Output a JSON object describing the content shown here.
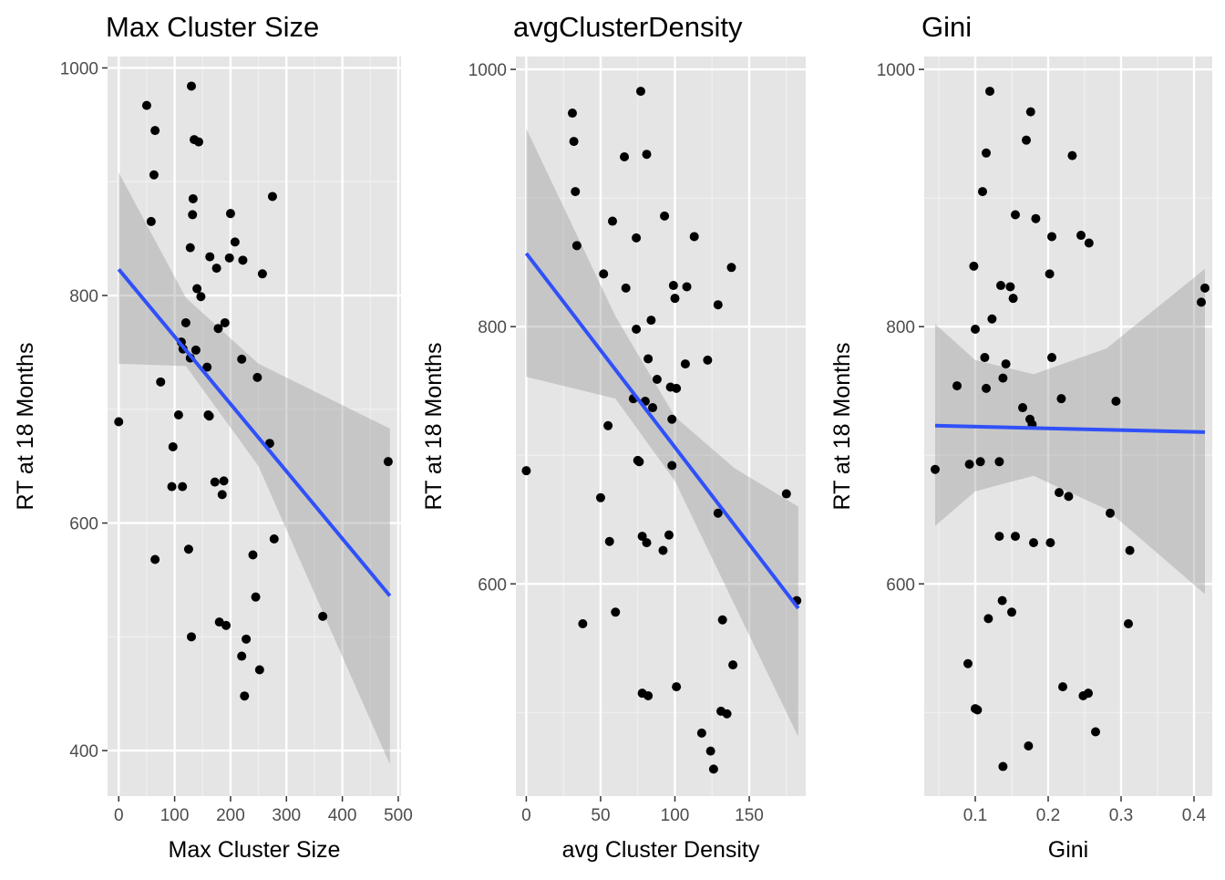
{
  "colors": {
    "panel_bg": "#e5e5e5",
    "grid_major": "#ffffff",
    "grid_minor": "#f0f0f0",
    "point": "#000000",
    "fit_line": "#3050f8",
    "ribbon": "#999999",
    "tick_text": "#4d4d4d",
    "title_text": "#000000"
  },
  "chart_data": [
    {
      "type": "scatter",
      "title": "Max Cluster Size",
      "xlabel": "Max Cluster Size",
      "ylabel": "RT at 18 Months",
      "xlim": [
        -20,
        505
      ],
      "ylim": [
        360,
        1010
      ],
      "xticks": [
        0,
        100,
        200,
        300,
        400,
        500
      ],
      "yticks": [
        400,
        600,
        800,
        1000
      ],
      "grid": true,
      "fit": {
        "x": [
          0,
          485
        ],
        "y": [
          823,
          536
        ]
      },
      "ribbon": {
        "x": [
          0,
          120,
          250,
          485
        ],
        "upper": [
          908,
          798,
          740,
          683
        ],
        "lower": [
          740,
          738,
          650,
          388
        ]
      },
      "points": [
        [
          0,
          689
        ],
        [
          50,
          967
        ],
        [
          58,
          865
        ],
        [
          63,
          906
        ],
        [
          65,
          945
        ],
        [
          65,
          568
        ],
        [
          75,
          724
        ],
        [
          95,
          632
        ],
        [
          97,
          667
        ],
        [
          107,
          695
        ],
        [
          112,
          759
        ],
        [
          114,
          632
        ],
        [
          115,
          753
        ],
        [
          120,
          776
        ],
        [
          125,
          577
        ],
        [
          128,
          745
        ],
        [
          128,
          842
        ],
        [
          130,
          500
        ],
        [
          130,
          984
        ],
        [
          132,
          871
        ],
        [
          133,
          885
        ],
        [
          135,
          937
        ],
        [
          138,
          752
        ],
        [
          140,
          806
        ],
        [
          143,
          935
        ],
        [
          147,
          799
        ],
        [
          158,
          737
        ],
        [
          160,
          695
        ],
        [
          162,
          694
        ],
        [
          163,
          834
        ],
        [
          172,
          636
        ],
        [
          175,
          824
        ],
        [
          178,
          771
        ],
        [
          180,
          513
        ],
        [
          185,
          625
        ],
        [
          188,
          637
        ],
        [
          190,
          776
        ],
        [
          192,
          510
        ],
        [
          198,
          833
        ],
        [
          200,
          872
        ],
        [
          208,
          847
        ],
        [
          220,
          744
        ],
        [
          220,
          483
        ],
        [
          222,
          831
        ],
        [
          225,
          448
        ],
        [
          228,
          498
        ],
        [
          240,
          572
        ],
        [
          245,
          535
        ],
        [
          248,
          728
        ],
        [
          252,
          471
        ],
        [
          257,
          819
        ],
        [
          270,
          670
        ],
        [
          275,
          887
        ],
        [
          278,
          586
        ],
        [
          365,
          518
        ],
        [
          482,
          654
        ]
      ]
    },
    {
      "type": "scatter",
      "title": "avgClusterDensity",
      "xlabel": "avg Cluster Density",
      "ylabel": "RT at 18 Months",
      "xlim": [
        -7,
        188
      ],
      "ylim": [
        435,
        1010
      ],
      "xticks": [
        0,
        50,
        100,
        150
      ],
      "yticks": [
        600,
        800,
        1000
      ],
      "grid": true,
      "fit": {
        "x": [
          0,
          183
        ],
        "y": [
          857,
          581
        ]
      },
      "ribbon": {
        "x": [
          0,
          60,
          100,
          140,
          183
        ],
        "upper": [
          954,
          808,
          730,
          690,
          660
        ],
        "lower": [
          761,
          744,
          680,
          584,
          481
        ]
      },
      "points": [
        [
          0,
          688
        ],
        [
          31,
          966
        ],
        [
          32,
          944
        ],
        [
          33,
          905
        ],
        [
          34,
          863
        ],
        [
          38,
          569
        ],
        [
          50,
          667
        ],
        [
          52,
          841
        ],
        [
          55,
          723
        ],
        [
          56,
          633
        ],
        [
          58,
          882
        ],
        [
          60,
          578
        ],
        [
          66,
          932
        ],
        [
          67,
          830
        ],
        [
          72,
          744
        ],
        [
          74,
          869
        ],
        [
          74,
          798
        ],
        [
          75,
          696
        ],
        [
          76,
          695
        ],
        [
          77,
          983
        ],
        [
          78,
          637
        ],
        [
          78,
          515
        ],
        [
          80,
          742
        ],
        [
          81,
          934
        ],
        [
          81,
          632
        ],
        [
          82,
          775
        ],
        [
          82,
          513
        ],
        [
          84,
          805
        ],
        [
          85,
          737
        ],
        [
          88,
          759
        ],
        [
          92,
          626
        ],
        [
          93,
          886
        ],
        [
          96,
          638
        ],
        [
          97,
          753
        ],
        [
          98,
          728
        ],
        [
          98,
          692
        ],
        [
          99,
          832
        ],
        [
          100,
          822
        ],
        [
          101,
          752
        ],
        [
          101,
          520
        ],
        [
          107,
          771
        ],
        [
          108,
          831
        ],
        [
          113,
          870
        ],
        [
          118,
          484
        ],
        [
          122,
          774
        ],
        [
          124,
          470
        ],
        [
          126,
          456
        ],
        [
          129,
          817
        ],
        [
          129,
          655
        ],
        [
          131,
          501
        ],
        [
          132,
          572
        ],
        [
          135,
          499
        ],
        [
          138,
          846
        ],
        [
          139,
          537
        ],
        [
          175,
          670
        ],
        [
          182,
          587
        ]
      ]
    },
    {
      "type": "scatter",
      "title": "Gini",
      "xlabel": "Gini",
      "ylabel": "RT at 18 Months",
      "xlim": [
        0.03,
        0.425
      ],
      "ylim": [
        435,
        1010
      ],
      "xticks": [
        0.1,
        0.2,
        0.3,
        0.4
      ],
      "yticks": [
        600,
        800,
        1000
      ],
      "grid": true,
      "fit": {
        "x": [
          0.045,
          0.415
        ],
        "y": [
          723,
          718
        ]
      },
      "ribbon": {
        "x": [
          0.045,
          0.1,
          0.18,
          0.28,
          0.415
        ],
        "upper": [
          802,
          774,
          763,
          783,
          845
        ],
        "lower": [
          645,
          672,
          684,
          658,
          592
        ]
      },
      "points": [
        [
          0.045,
          689
        ],
        [
          0.075,
          754
        ],
        [
          0.09,
          538
        ],
        [
          0.092,
          693
        ],
        [
          0.098,
          847
        ],
        [
          0.1,
          798
        ],
        [
          0.1,
          503
        ],
        [
          0.103,
          502
        ],
        [
          0.107,
          695
        ],
        [
          0.11,
          905
        ],
        [
          0.113,
          776
        ],
        [
          0.115,
          752
        ],
        [
          0.115,
          935
        ],
        [
          0.118,
          573
        ],
        [
          0.12,
          983
        ],
        [
          0.123,
          806
        ],
        [
          0.133,
          637
        ],
        [
          0.133,
          695
        ],
        [
          0.135,
          832
        ],
        [
          0.137,
          587
        ],
        [
          0.138,
          760
        ],
        [
          0.138,
          458
        ],
        [
          0.142,
          771
        ],
        [
          0.148,
          831
        ],
        [
          0.15,
          578
        ],
        [
          0.152,
          822
        ],
        [
          0.155,
          637
        ],
        [
          0.155,
          887
        ],
        [
          0.165,
          737
        ],
        [
          0.17,
          945
        ],
        [
          0.173,
          474
        ],
        [
          0.175,
          728
        ],
        [
          0.176,
          967
        ],
        [
          0.178,
          724
        ],
        [
          0.18,
          632
        ],
        [
          0.183,
          884
        ],
        [
          0.202,
          841
        ],
        [
          0.203,
          632
        ],
        [
          0.205,
          776
        ],
        [
          0.205,
          870
        ],
        [
          0.215,
          671
        ],
        [
          0.218,
          744
        ],
        [
          0.22,
          520
        ],
        [
          0.228,
          668
        ],
        [
          0.233,
          933
        ],
        [
          0.245,
          871
        ],
        [
          0.248,
          513
        ],
        [
          0.255,
          515
        ],
        [
          0.256,
          865
        ],
        [
          0.265,
          485
        ],
        [
          0.285,
          655
        ],
        [
          0.293,
          742
        ],
        [
          0.31,
          569
        ],
        [
          0.312,
          626
        ],
        [
          0.41,
          819
        ],
        [
          0.415,
          830
        ]
      ]
    }
  ]
}
